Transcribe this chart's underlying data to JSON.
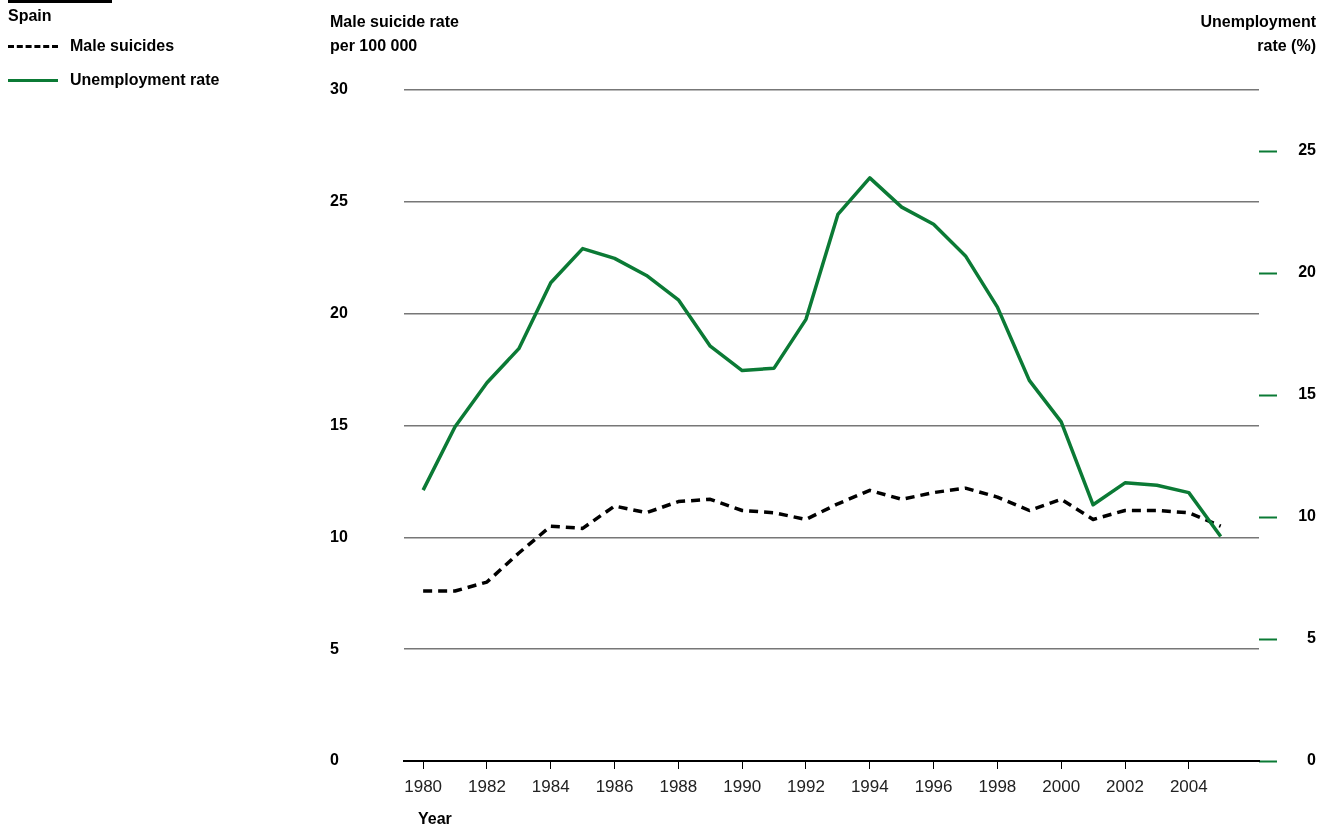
{
  "chart_data": {
    "type": "line",
    "legend_title": "Spain",
    "xlabel": "Year",
    "ylabel": "Male suicide rate per 100 000",
    "y2label": "Unemployment rate (%)",
    "x": [
      1980,
      1981,
      1982,
      1983,
      1984,
      1985,
      1986,
      1987,
      1988,
      1989,
      1990,
      1991,
      1992,
      1993,
      1994,
      1995,
      1996,
      1997,
      1998,
      1999,
      2000,
      2001,
      2002,
      2003,
      2004,
      2005
    ],
    "xlim": [
      1979.4,
      2006.2
    ],
    "xticks": [
      1980,
      1982,
      1984,
      1986,
      1988,
      1990,
      1992,
      1994,
      1996,
      1998,
      2000,
      2002,
      2004
    ],
    "ylim": [
      0,
      30
    ],
    "yticks": [
      0,
      5,
      10,
      15,
      20,
      25,
      30
    ],
    "y2lim": [
      0,
      27.5
    ],
    "y2ticks": [
      0,
      5,
      10,
      15,
      20,
      25
    ],
    "grid": "y",
    "legend": "top left",
    "series": [
      {
        "name": "Male suicides",
        "color": "#000000",
        "line_style": "dashed",
        "values": [
          7.6,
          7.6,
          8.0,
          9.3,
          10.5,
          10.4,
          11.4,
          11.1,
          11.6,
          11.7,
          11.2,
          11.1,
          10.8,
          11.5,
          12.1,
          11.7,
          12.0,
          12.2,
          11.8,
          11.2,
          11.7,
          10.8,
          11.2,
          11.2,
          11.1,
          10.5
        ]
      },
      {
        "name": "Unemployment rate",
        "color": "#0b7a35",
        "line_style": "solid",
        "axis": "y2",
        "values": [
          11.1,
          13.7,
          15.5,
          16.9,
          19.6,
          21.0,
          20.6,
          19.9,
          18.9,
          17.0,
          16.0,
          16.1,
          18.1,
          22.4,
          23.9,
          22.7,
          22.0,
          20.7,
          18.6,
          15.6,
          13.9,
          10.5,
          11.4,
          11.3,
          11.0,
          9.2
        ]
      }
    ]
  }
}
